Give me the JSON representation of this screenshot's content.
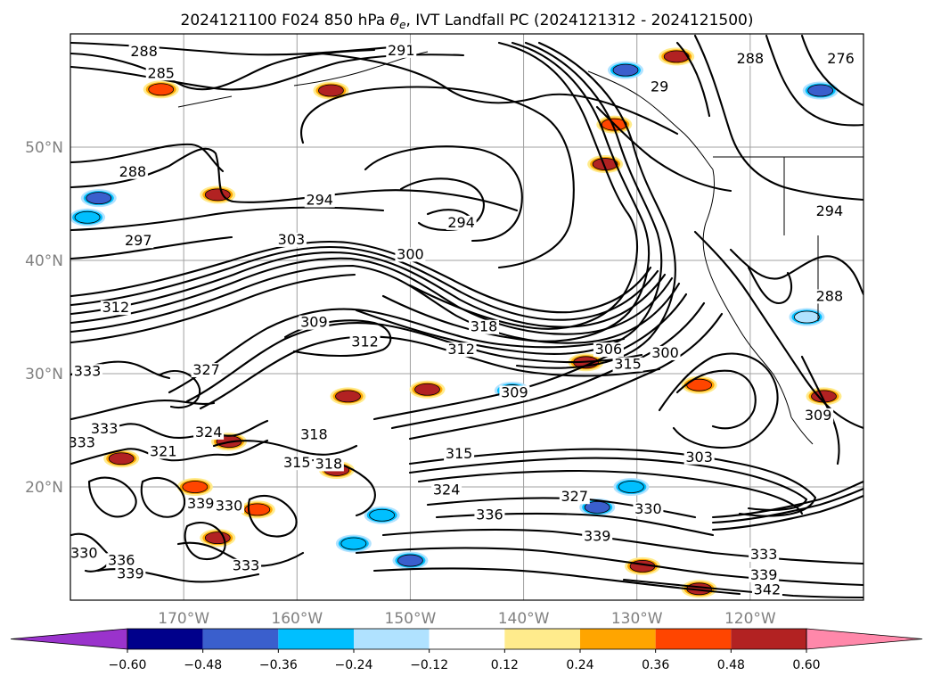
{
  "chart_data": {
    "type": "contour_map",
    "title": "2024121100 F024 850 hPa θe, IVT Landfall PC (2024121312 - 2024121500)",
    "title_parts": [
      "2024121100 F024 850 hPa ",
      "θ",
      "e",
      ", IVT Landfall PC (2024121312 - 2024121500)"
    ],
    "lon_range": [
      -180,
      -110
    ],
    "lat_range": [
      10,
      60
    ],
    "xticks": [
      {
        "lon": -170,
        "label": "170°W"
      },
      {
        "lon": -160,
        "label": "160°W"
      },
      {
        "lon": -150,
        "label": "150°W"
      },
      {
        "lon": -140,
        "label": "140°W"
      },
      {
        "lon": -130,
        "label": "130°W"
      },
      {
        "lon": -120,
        "label": "120°W"
      }
    ],
    "yticks": [
      {
        "lat": 20,
        "label": "20°N"
      },
      {
        "lat": 30,
        "label": "30°N"
      },
      {
        "lat": 40,
        "label": "40°N"
      },
      {
        "lat": 50,
        "label": "50°N"
      }
    ],
    "grid": true,
    "colorbar": {
      "orientation": "horizontal",
      "extend": "both",
      "boundaries": [
        -0.6,
        -0.48,
        -0.36,
        -0.24,
        -0.12,
        0.12,
        0.24,
        0.36,
        0.48,
        0.6
      ],
      "tick_labels": [
        "−0.60",
        "−0.48",
        "−0.36",
        "−0.24",
        "−0.12",
        "0.12",
        "0.24",
        "0.36",
        "0.48",
        "0.60"
      ],
      "colors": [
        "#9a33cc",
        "#00008b",
        "#3a5fcd",
        "#00bfff",
        "#b0e2ff",
        "#ffffff",
        "#ffeb8c",
        "#ffa500",
        "#ff4500",
        "#b22222",
        "#ff88aa"
      ]
    },
    "contour_labels": [
      {
        "lon": -173.5,
        "lat": 58.1,
        "text": "288"
      },
      {
        "lon": -172.0,
        "lat": 56.2,
        "text": "285"
      },
      {
        "lon": -150.8,
        "lat": 58.2,
        "text": "291"
      },
      {
        "lon": -174.5,
        "lat": 47.5,
        "text": "288"
      },
      {
        "lon": -158.0,
        "lat": 45.0,
        "text": "294"
      },
      {
        "lon": -174.0,
        "lat": 41.4,
        "text": "297"
      },
      {
        "lon": -160.5,
        "lat": 41.5,
        "text": "303"
      },
      {
        "lon": -150.0,
        "lat": 40.2,
        "text": "300"
      },
      {
        "lon": -145.5,
        "lat": 43.0,
        "text": "294"
      },
      {
        "lon": -176.0,
        "lat": 35.5,
        "text": "312"
      },
      {
        "lon": -158.5,
        "lat": 34.2,
        "text": "309"
      },
      {
        "lon": -154.0,
        "lat": 32.5,
        "text": "312"
      },
      {
        "lon": -143.5,
        "lat": 33.8,
        "text": "318"
      },
      {
        "lon": -145.5,
        "lat": 31.8,
        "text": "312"
      },
      {
        "lon": -132.5,
        "lat": 31.8,
        "text": "306"
      },
      {
        "lon": -130.8,
        "lat": 30.5,
        "text": "315"
      },
      {
        "lon": -127.5,
        "lat": 31.5,
        "text": "300"
      },
      {
        "lon": -140.8,
        "lat": 28.0,
        "text": "309"
      },
      {
        "lon": -178.5,
        "lat": 29.9,
        "text": "333"
      },
      {
        "lon": -168.0,
        "lat": 30.0,
        "text": "327"
      },
      {
        "lon": -158.5,
        "lat": 24.3,
        "text": "318"
      },
      {
        "lon": -167.8,
        "lat": 24.5,
        "text": "324"
      },
      {
        "lon": -171.8,
        "lat": 22.8,
        "text": "321"
      },
      {
        "lon": -160.0,
        "lat": 21.8,
        "text": "315"
      },
      {
        "lon": -157.2,
        "lat": 21.7,
        "text": "318"
      },
      {
        "lon": -145.7,
        "lat": 22.6,
        "text": "315"
      },
      {
        "lon": -124.5,
        "lat": 22.3,
        "text": "303"
      },
      {
        "lon": -179.0,
        "lat": 23.6,
        "text": "333"
      },
      {
        "lon": -146.8,
        "lat": 19.4,
        "text": "324"
      },
      {
        "lon": -135.5,
        "lat": 18.8,
        "text": "327"
      },
      {
        "lon": -129.0,
        "lat": 17.7,
        "text": "330"
      },
      {
        "lon": -143.0,
        "lat": 17.2,
        "text": "336"
      },
      {
        "lon": -133.5,
        "lat": 15.3,
        "text": "339"
      },
      {
        "lon": -118.8,
        "lat": 13.7,
        "text": "333"
      },
      {
        "lon": -118.8,
        "lat": 11.9,
        "text": "339"
      },
      {
        "lon": -118.5,
        "lat": 10.6,
        "text": "342"
      },
      {
        "lon": -166.0,
        "lat": 18.0,
        "text": "330"
      },
      {
        "lon": -168.5,
        "lat": 18.2,
        "text": "339"
      },
      {
        "lon": -164.5,
        "lat": 12.7,
        "text": "333"
      },
      {
        "lon": -175.5,
        "lat": 13.2,
        "text": "336"
      },
      {
        "lon": -174.7,
        "lat": 12.0,
        "text": "339"
      },
      {
        "lon": -178.8,
        "lat": 13.8,
        "text": "330"
      },
      {
        "lon": -177.0,
        "lat": 24.8,
        "text": "333"
      },
      {
        "lon": -120.0,
        "lat": 57.5,
        "text": "288"
      },
      {
        "lon": -112.0,
        "lat": 57.5,
        "text": "276"
      },
      {
        "lon": -113.0,
        "lat": 36.5,
        "text": "288"
      },
      {
        "lon": -113.0,
        "lat": 44.0,
        "text": "294"
      },
      {
        "lon": -114.0,
        "lat": 26.0,
        "text": "309"
      },
      {
        "lon": -128.0,
        "lat": 55.0,
        "text": "29"
      }
    ],
    "anomaly_patches": [
      {
        "lon": -172.0,
        "lat": 55.1,
        "category": 0.36
      },
      {
        "lon": -157.0,
        "lat": 55.0,
        "category": 0.48
      },
      {
        "lon": -167.0,
        "lat": 45.8,
        "category": 0.48
      },
      {
        "lon": -177.5,
        "lat": 45.5,
        "category": -0.48
      },
      {
        "lon": -178.5,
        "lat": 43.8,
        "category": -0.36
      },
      {
        "lon": -132.0,
        "lat": 52.0,
        "category": 0.36
      },
      {
        "lon": -132.8,
        "lat": 48.5,
        "category": 0.48
      },
      {
        "lon": -126.5,
        "lat": 58.0,
        "category": 0.48
      },
      {
        "lon": -131.0,
        "lat": 56.8,
        "category": -0.48
      },
      {
        "lon": -113.8,
        "lat": 55.0,
        "category": -0.48
      },
      {
        "lon": -134.5,
        "lat": 31.0,
        "category": 0.48
      },
      {
        "lon": -141.0,
        "lat": 28.5,
        "category": -0.36
      },
      {
        "lon": -148.5,
        "lat": 28.6,
        "category": 0.48
      },
      {
        "lon": -155.5,
        "lat": 28.0,
        "category": 0.48
      },
      {
        "lon": -166.0,
        "lat": 24.0,
        "category": 0.48
      },
      {
        "lon": -175.5,
        "lat": 22.5,
        "category": 0.48
      },
      {
        "lon": -156.5,
        "lat": 21.5,
        "category": 0.48
      },
      {
        "lon": -133.5,
        "lat": 18.2,
        "category": -0.48
      },
      {
        "lon": -130.5,
        "lat": 20.0,
        "category": -0.36
      },
      {
        "lon": -124.5,
        "lat": 11.0,
        "category": 0.48
      },
      {
        "lon": -129.5,
        "lat": 13.0,
        "category": 0.48
      },
      {
        "lon": -167.0,
        "lat": 15.5,
        "category": 0.48
      },
      {
        "lon": -169.0,
        "lat": 20.0,
        "category": 0.36
      },
      {
        "lon": -163.5,
        "lat": 18.0,
        "category": 0.36
      },
      {
        "lon": -113.5,
        "lat": 28.0,
        "category": 0.48
      },
      {
        "lon": -124.5,
        "lat": 29.0,
        "category": 0.36
      },
      {
        "lon": -115.0,
        "lat": 35.0,
        "category": -0.24
      },
      {
        "lon": -150.0,
        "lat": 13.5,
        "category": -0.48
      },
      {
        "lon": -155.0,
        "lat": 15.0,
        "category": -0.36
      },
      {
        "lon": -152.5,
        "lat": 17.5,
        "category": -0.36
      }
    ]
  }
}
